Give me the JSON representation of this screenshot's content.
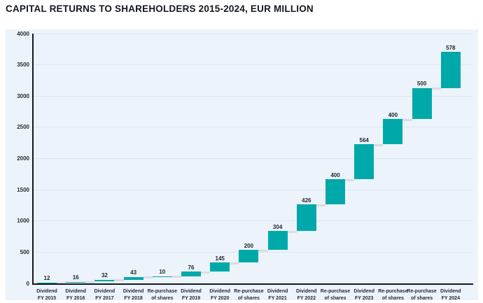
{
  "title": "CAPITAL RETURNS TO SHAREHOLDERS 2015-2024, EUR MILLION",
  "colors": {
    "bar": "#00a9a9",
    "panel_background": "#ecf3fa",
    "gridline": "#dfe7ee",
    "axis": "#15181c",
    "connector": "#d9dde0",
    "title_text": "#14181f",
    "tick_text": "#252e38"
  },
  "chart_data": {
    "type": "bar",
    "subtype": "waterfall",
    "title": "CAPITAL RETURNS TO SHAREHOLDERS 2015-2024, EUR MILLION",
    "xlabel": "",
    "ylabel": "",
    "categories": [
      "Dividend\nFY 2015",
      "Dividend\nFY 2016",
      "Dividend\nFY 2017",
      "Dividend\nFY 2018",
      "Re-purchase\nof shares",
      "Dividend\nFY 2019",
      "Dividend\nFY 2020",
      "Re-purchase\nof shares",
      "Dividend\nFY 2021",
      "Dividend\nFY 2022",
      "Re-purchase\nof shares",
      "Dividend\nFY 2023",
      "Re-purchase\nof shares",
      "Re-purchase\nof shares",
      "Dividend\nFY 2024"
    ],
    "values": [
      12,
      16,
      32,
      43,
      10,
      76,
      145,
      200,
      304,
      426,
      400,
      564,
      400,
      500,
      578
    ],
    "cumulative_totals": [
      12,
      28,
      60,
      103,
      113,
      189,
      334,
      534,
      838,
      1264,
      1664,
      2228,
      2628,
      3128,
      3706
    ],
    "data_labels": [
      "12",
      "16",
      "32",
      "43",
      "10",
      "76",
      "145",
      "200",
      "304",
      "426",
      "400",
      "564",
      "400",
      "500",
      "578"
    ],
    "ylim": [
      0,
      4000
    ],
    "ytick_step": 500,
    "ytick_labels": [
      "0",
      "500",
      "1000",
      "1500",
      "2000",
      "2500",
      "3000",
      "3500",
      "4000"
    ],
    "grid": "horizontal",
    "legend": "none"
  }
}
